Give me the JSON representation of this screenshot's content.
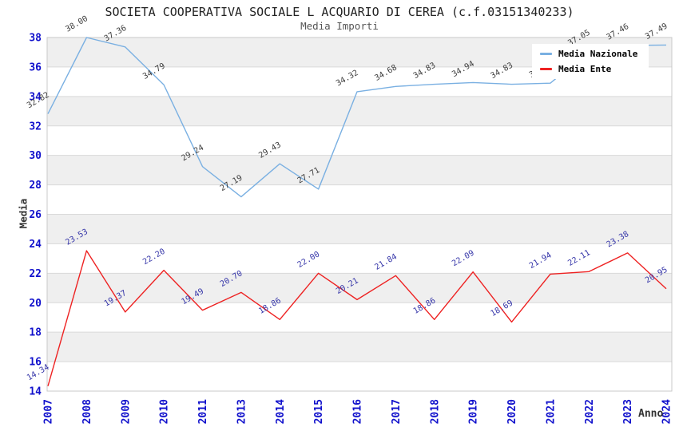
{
  "header": {
    "title": "SOCIETA COOPERATIVA SOCIALE L ACQUARIO DI CEREA (c.f.03151340233)",
    "subtitle": "Media Importi"
  },
  "legend": {
    "items": [
      {
        "label": "Media Nazionale",
        "color": "#7ab0e2"
      },
      {
        "label": "Media Ente",
        "color": "#ee2222"
      }
    ]
  },
  "chart_data": {
    "type": "line",
    "title": "SOCIETA COOPERATIVA SOCIALE L ACQUARIO DI CEREA (c.f.03151340233)",
    "subtitle": "Media Importi",
    "xlabel": "Anno",
    "ylabel": "Media",
    "ylim": [
      14,
      38
    ],
    "ytick_step": 2,
    "grid": true,
    "legend_position": "top-right",
    "categories": [
      "2007",
      "2008",
      "2009",
      "2010",
      "2011",
      "2013",
      "2014",
      "2015",
      "2016",
      "2017",
      "2018",
      "2019",
      "2020",
      "2021",
      "2022",
      "2023",
      "2024"
    ],
    "series": [
      {
        "name": "Media Nazionale",
        "color": "#7ab0e2",
        "label_color": "#3d3d3d",
        "values": [
          32.82,
          38.0,
          37.36,
          34.79,
          29.24,
          27.19,
          29.43,
          27.71,
          34.32,
          34.68,
          34.83,
          34.94,
          34.83,
          34.9,
          37.05,
          37.46,
          37.49
        ]
      },
      {
        "name": "Media Ente",
        "color": "#ee2222",
        "label_color": "#3434a8",
        "values": [
          14.34,
          23.53,
          19.37,
          22.2,
          19.49,
          20.7,
          18.86,
          22.0,
          20.21,
          21.84,
          18.86,
          22.09,
          18.69,
          21.94,
          22.11,
          23.38,
          20.95
        ]
      }
    ],
    "styles": {
      "band_color": "#efefef",
      "grid_color": "#d9d9d9",
      "border_color": "#c9c9c9",
      "tick_color": "#1111cc"
    }
  }
}
